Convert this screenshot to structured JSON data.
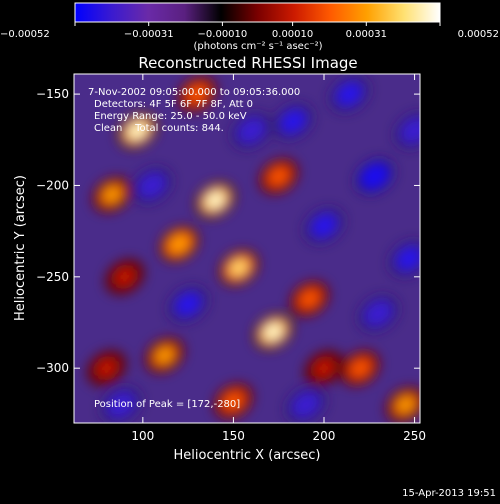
{
  "chart_data": {
    "type": "heatmap",
    "title": "Reconstructed RHESSI Image",
    "xlabel": "Heliocentric X (arcsec)",
    "ylabel": "Heliocentric Y (arcsec)",
    "xlim": [
      62,
      253
    ],
    "ylim": [
      -330,
      -139
    ],
    "x_ticks": [
      100,
      150,
      200,
      250
    ],
    "x_tick_labels": [
      "100",
      "150",
      "200",
      "250"
    ],
    "y_ticks": [
      -150,
      -200,
      -250,
      -300
    ],
    "y_tick_labels": [
      "−150",
      "−200",
      "−250",
      "−300"
    ],
    "colorbar": {
      "range": [
        -0.00052,
        0.00052
      ],
      "ticks": [
        -0.00052,
        -0.00031,
        -0.0001,
        0.0001,
        0.00031,
        0.00052
      ],
      "tick_labels": [
        "−0.00052",
        "−0.00031",
        "−0.00010",
        "0.00010",
        "0.00031",
        "0.00052"
      ],
      "units_label": "(photons cm⁻² s⁻¹ asec⁻²)",
      "colors": [
        "#0000ff",
        "#3a1ad0",
        "#6a2aa8",
        "#5a2080",
        "#000000",
        "#7a0000",
        "#cc1a00",
        "#ff5a00",
        "#ffa000",
        "#ffe070",
        "#ffffff"
      ]
    },
    "annotations": [
      "7-Nov-2002 09:05:00.000 to 09:05:36.000",
      "Detectors: 4F 5F 6F 7F 8F, Att 0",
      "Energy Range: 25.0 - 50.0 keV",
      "Clean    Total counts: 844.",
      "Position of Peak = [172,-280]"
    ],
    "peak": {
      "x": 172,
      "y": -280
    },
    "bright_spots": [
      {
        "x": 97,
        "y": -170,
        "v": 0.95
      },
      {
        "x": 140,
        "y": -208,
        "v": 1.0
      },
      {
        "x": 172,
        "y": -280,
        "v": 1.0
      },
      {
        "x": 120,
        "y": -232,
        "v": 0.75
      },
      {
        "x": 153,
        "y": -245,
        "v": 0.8
      },
      {
        "x": 83,
        "y": -205,
        "v": 0.6
      },
      {
        "x": 112,
        "y": -293,
        "v": 0.6
      },
      {
        "x": 192,
        "y": -262,
        "v": 0.55
      },
      {
        "x": 175,
        "y": -195,
        "v": 0.5
      },
      {
        "x": 220,
        "y": -300,
        "v": 0.55
      },
      {
        "x": 150,
        "y": -318,
        "v": 0.45
      },
      {
        "x": 245,
        "y": -320,
        "v": 0.6
      },
      {
        "x": 200,
        "y": -300,
        "v": 0.4
      },
      {
        "x": 90,
        "y": -250,
        "v": 0.4
      },
      {
        "x": 130,
        "y": -150,
        "v": 0.45
      },
      {
        "x": 80,
        "y": -300,
        "v": 0.35
      }
    ],
    "negative_spots": [
      {
        "x": 183,
        "y": -165,
        "v": -0.85
      },
      {
        "x": 228,
        "y": -195,
        "v": -0.9
      },
      {
        "x": 214,
        "y": -150,
        "v": -0.75
      },
      {
        "x": 247,
        "y": -240,
        "v": -0.85
      },
      {
        "x": 200,
        "y": -222,
        "v": -0.6
      },
      {
        "x": 105,
        "y": -200,
        "v": -0.5
      },
      {
        "x": 160,
        "y": -170,
        "v": -0.55
      },
      {
        "x": 125,
        "y": -265,
        "v": -0.6
      },
      {
        "x": 230,
        "y": -270,
        "v": -0.55
      },
      {
        "x": 88,
        "y": -320,
        "v": -0.55
      },
      {
        "x": 190,
        "y": -320,
        "v": -0.5
      },
      {
        "x": 250,
        "y": -170,
        "v": -0.5
      }
    ]
  },
  "footer": {
    "timestamp": "15-Apr-2013 19:51"
  }
}
